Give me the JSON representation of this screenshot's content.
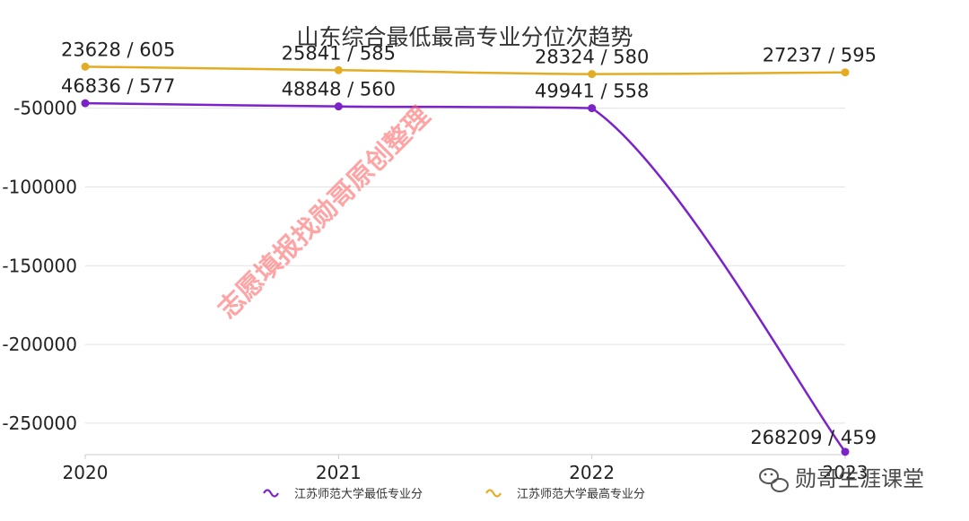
{
  "chart_data": {
    "type": "line",
    "title": "山东综合最低最高专业分位次趋势",
    "categories": [
      "2020",
      "2021",
      "2022",
      "2023"
    ],
    "ylim": [
      -270000,
      -20000
    ],
    "yticks": [
      -50000,
      -100000,
      -150000,
      -200000,
      -250000
    ],
    "ytick_labels": [
      "-50000",
      "-100000",
      "-150000",
      "-200000",
      "-250000"
    ],
    "grid": true,
    "legend_position": "bottom",
    "series": [
      {
        "name": "江苏师范大学最低专业分",
        "color": "#7b22c9",
        "values": [
          -46836,
          -48848,
          -49941,
          -268209
        ],
        "labels": [
          "46836 / 577",
          "48848 / 560",
          "49941 / 558",
          "268209 / 459"
        ]
      },
      {
        "name": "江苏师范大学最高专业分",
        "color": "#e3ac22",
        "values": [
          -23628,
          -25841,
          -28324,
          -27237
        ],
        "labels": [
          "23628 / 605",
          "25841 / 585",
          "28324 / 580",
          "27237 / 595"
        ]
      }
    ]
  },
  "watermark": "志愿填报找勋哥原创整理",
  "logo": {
    "text": "勋哥生涯课堂",
    "icon": "wechat-icon"
  }
}
